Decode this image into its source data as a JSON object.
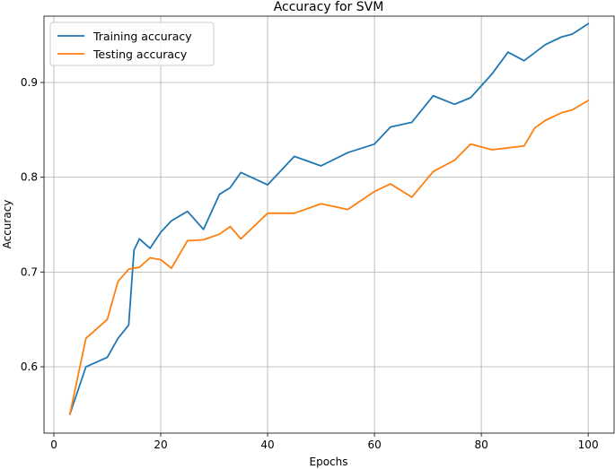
{
  "chart_data": {
    "type": "line",
    "title": "Accuracy for SVM",
    "xlabel": "Epochs",
    "ylabel": "Accuracy",
    "xlim": [
      -1.85,
      104.85
    ],
    "ylim": [
      0.53,
      0.97
    ],
    "xticks": [
      0,
      20,
      40,
      60,
      80,
      100
    ],
    "yticks": [
      0.6,
      0.7,
      0.8,
      0.9
    ],
    "ytick_labels": [
      "0.6",
      "0.7",
      "0.8",
      "0.9"
    ],
    "grid": true,
    "legend_position": "top-left",
    "series": [
      {
        "name": "Training accuracy",
        "color": "#1f77b4",
        "x": [
          3,
          6,
          10,
          12,
          14,
          15,
          16,
          18,
          20,
          22,
          25,
          28,
          31,
          33,
          35,
          40,
          45,
          50,
          55,
          60,
          63,
          67,
          71,
          75,
          78,
          82,
          85,
          88,
          92,
          95,
          97,
          100
        ],
        "y": [
          0.55,
          0.6,
          0.61,
          0.63,
          0.644,
          0.723,
          0.735,
          0.725,
          0.742,
          0.754,
          0.764,
          0.745,
          0.782,
          0.789,
          0.805,
          0.792,
          0.822,
          0.812,
          0.826,
          0.835,
          0.853,
          0.858,
          0.886,
          0.877,
          0.884,
          0.909,
          0.932,
          0.923,
          0.94,
          0.948,
          0.951,
          0.962
        ]
      },
      {
        "name": "Testing accuracy",
        "color": "#ff7f0e",
        "x": [
          3,
          6,
          10,
          12,
          14,
          16,
          18,
          20,
          22,
          25,
          28,
          31,
          33,
          35,
          40,
          45,
          50,
          55,
          60,
          63,
          67,
          71,
          75,
          78,
          82,
          85,
          88,
          90,
          92,
          95,
          97,
          100
        ],
        "y": [
          0.55,
          0.63,
          0.65,
          0.69,
          0.703,
          0.705,
          0.715,
          0.713,
          0.704,
          0.733,
          0.734,
          0.74,
          0.748,
          0.735,
          0.762,
          0.762,
          0.772,
          0.766,
          0.785,
          0.793,
          0.779,
          0.806,
          0.818,
          0.835,
          0.829,
          0.831,
          0.833,
          0.852,
          0.86,
          0.868,
          0.871,
          0.881
        ]
      }
    ]
  }
}
